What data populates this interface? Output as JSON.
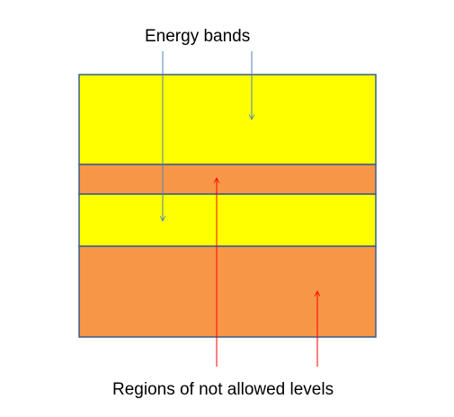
{
  "labels": {
    "energy_bands": "Energy bands",
    "forbidden_regions": "Regions of not allowed levels"
  },
  "bands": [
    {
      "kind": "allowed",
      "color": "#ffff00"
    },
    {
      "kind": "forbidden",
      "color": "#f79646"
    },
    {
      "kind": "allowed",
      "color": "#ffff00"
    },
    {
      "kind": "forbidden",
      "color": "#f79646"
    }
  ],
  "colors": {
    "band_border": "#385d8a",
    "energy_band_arrow": "#4f81bd",
    "forbidden_arrow": "#ff0000"
  }
}
